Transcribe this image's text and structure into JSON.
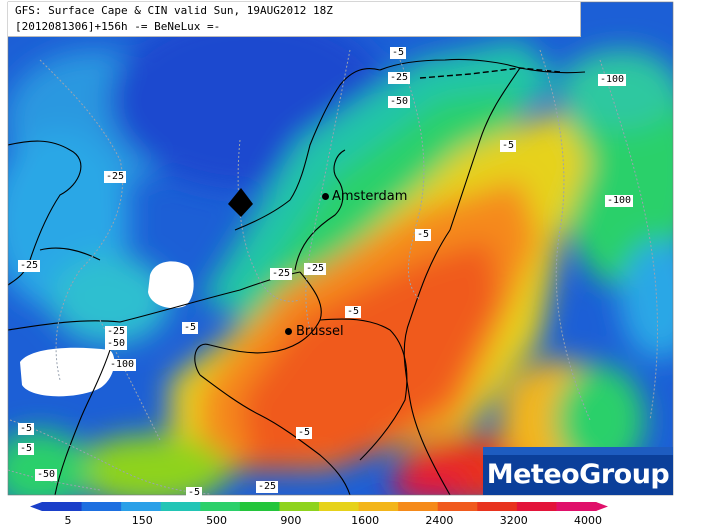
{
  "title": {
    "line1": "GFS: Surface Cape & CIN valid Sun, 19AUG2012 18Z",
    "line2": "[2012081306]+156h -= BeNeLux =-"
  },
  "cities": [
    {
      "name": "Amsterdam",
      "key": "amsterdam"
    },
    {
      "name": "Brussel",
      "key": "brussel"
    }
  ],
  "cin_contour_labels": [
    "-5",
    "-25",
    "-50",
    "-100",
    "-25",
    "-5",
    "-100",
    "-25",
    "-5",
    "-25",
    "-25",
    "-5",
    "-5",
    "-25",
    "-50",
    "-100",
    "-5",
    "-5",
    "-50",
    "-5",
    "-25",
    "-5"
  ],
  "brand": {
    "name": "MeteoGroup"
  },
  "legend": {
    "ticks": [
      "5",
      "150",
      "500",
      "900",
      "1600",
      "2400",
      "3200",
      "4000"
    ],
    "colors": [
      "#1a3fc9",
      "#1d6fe0",
      "#2aa0e8",
      "#22c5b5",
      "#2bd06a",
      "#23c53b",
      "#8ed31e",
      "#e6d21a",
      "#f3b51a",
      "#f58a1a",
      "#f05a1e",
      "#e8331e",
      "#e3143a",
      "#e0106a"
    ]
  }
}
